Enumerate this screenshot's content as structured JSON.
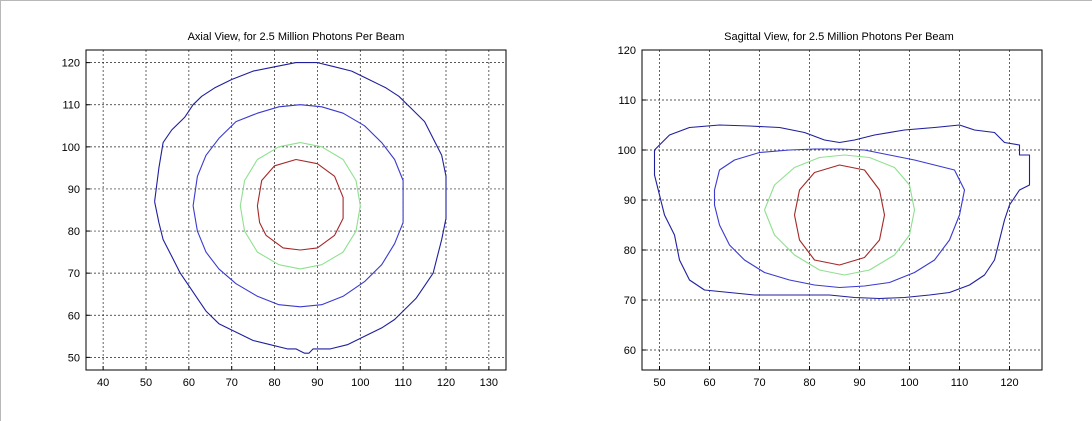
{
  "colors": {
    "outer_blue": "#1f1f9e",
    "mid_blue": "#3a3ad0",
    "green": "#8fe08f",
    "red": "#a52828",
    "grid": "#222222",
    "axis": "#000000"
  },
  "chart_data": [
    {
      "type": "contour",
      "title": "Axial View, for 2.5 Million Photons Per Beam",
      "xlabel": "",
      "ylabel": "",
      "xlim": [
        36,
        134
      ],
      "ylim": [
        47,
        123
      ],
      "xticks": [
        40,
        50,
        60,
        70,
        80,
        90,
        100,
        110,
        120,
        130
      ],
      "yticks": [
        50,
        60,
        70,
        80,
        90,
        100,
        110,
        120
      ],
      "grid": true,
      "series": [
        {
          "color": "#1f1f9e",
          "points": [
            [
              52,
              87
            ],
            [
              53,
              95
            ],
            [
              54,
              101
            ],
            [
              56,
              104
            ],
            [
              59,
              107
            ],
            [
              61,
              110
            ],
            [
              63,
              112
            ],
            [
              66,
              114
            ],
            [
              70,
              116
            ],
            [
              75,
              118
            ],
            [
              80,
              119
            ],
            [
              85,
              120
            ],
            [
              90,
              120
            ],
            [
              94,
              119
            ],
            [
              98,
              118
            ],
            [
              102,
              116
            ],
            [
              106,
              114
            ],
            [
              109,
              112
            ],
            [
              112,
              109
            ],
            [
              115,
              106
            ],
            [
              117,
              102
            ],
            [
              119,
              98
            ],
            [
              120,
              93
            ],
            [
              120,
              88
            ],
            [
              120,
              83
            ],
            [
              119,
              78
            ],
            [
              118,
              74
            ],
            [
              117,
              70
            ],
            [
              115,
              67
            ],
            [
              113,
              64
            ],
            [
              110,
              61
            ],
            [
              108,
              59
            ],
            [
              105,
              57
            ],
            [
              101,
              55
            ],
            [
              97,
              53
            ],
            [
              93,
              52
            ],
            [
              89,
              52
            ],
            [
              88,
              51
            ],
            [
              87,
              51
            ],
            [
              86,
              51.5
            ],
            [
              85,
              52
            ],
            [
              83,
              52
            ],
            [
              79,
              53
            ],
            [
              75,
              54
            ],
            [
              71,
              56
            ],
            [
              67,
              58
            ],
            [
              64,
              61
            ],
            [
              62,
              64
            ],
            [
              60,
              67
            ],
            [
              58,
              70
            ],
            [
              56,
              74
            ],
            [
              54,
              78
            ],
            [
              53,
              82
            ],
            [
              52,
              87
            ]
          ]
        },
        {
          "color": "#3a3ad0",
          "points": [
            [
              61,
              86
            ],
            [
              62,
              93
            ],
            [
              64,
              98
            ],
            [
              67,
              102
            ],
            [
              71,
              106
            ],
            [
              76,
              108
            ],
            [
              81,
              109.5
            ],
            [
              86,
              110
            ],
            [
              91,
              109.5
            ],
            [
              96,
              108
            ],
            [
              101,
              105
            ],
            [
              105,
              101
            ],
            [
              108,
              97
            ],
            [
              110,
              92
            ],
            [
              110,
              87
            ],
            [
              110,
              82
            ],
            [
              108,
              77
            ],
            [
              105,
              72
            ],
            [
              101,
              68
            ],
            [
              96,
              64.5
            ],
            [
              91,
              62.5
            ],
            [
              86,
              62
            ],
            [
              81,
              62.5
            ],
            [
              76,
              64.5
            ],
            [
              71,
              67.5
            ],
            [
              67,
              71
            ],
            [
              64,
              75
            ],
            [
              62,
              80
            ],
            [
              61,
              86
            ]
          ]
        },
        {
          "color": "#8fe08f",
          "points": [
            [
              72,
              86
            ],
            [
              73,
              92
            ],
            [
              76,
              97
            ],
            [
              81,
              100
            ],
            [
              86,
              101
            ],
            [
              91,
              100
            ],
            [
              96,
              97
            ],
            [
              99,
              92
            ],
            [
              100,
              86
            ],
            [
              99,
              80
            ],
            [
              96,
              75
            ],
            [
              91,
              72
            ],
            [
              86,
              71
            ],
            [
              81,
              72
            ],
            [
              76,
              75
            ],
            [
              73,
              80
            ],
            [
              72,
              86
            ]
          ]
        },
        {
          "color": "#a52828",
          "points": [
            [
              76,
              86
            ],
            [
              77,
              92
            ],
            [
              80,
              95.5
            ],
            [
              85,
              97
            ],
            [
              90,
              96
            ],
            [
              94,
              93
            ],
            [
              96,
              88
            ],
            [
              96,
              83
            ],
            [
              94,
              79
            ],
            [
              90,
              76
            ],
            [
              86,
              75.5
            ],
            [
              82,
              76
            ],
            [
              78,
              79
            ],
            [
              76.5,
              82
            ],
            [
              76,
              86
            ]
          ]
        }
      ]
    },
    {
      "type": "contour",
      "title": "Sagittal View, for 2.5 Million Photons Per Beam",
      "xlabel": "",
      "ylabel": "",
      "xlim": [
        46.5,
        126.5
      ],
      "ylim": [
        56,
        120
      ],
      "xticks": [
        50,
        60,
        70,
        80,
        90,
        100,
        110,
        120
      ],
      "yticks": [
        60,
        70,
        80,
        90,
        100,
        110,
        120
      ],
      "grid": true,
      "series": [
        {
          "color": "#1f1f9e",
          "points": [
            [
              49,
              100
            ],
            [
              52,
              103
            ],
            [
              56,
              104.5
            ],
            [
              62,
              105
            ],
            [
              68,
              104.8
            ],
            [
              74,
              104.5
            ],
            [
              79,
              103.5
            ],
            [
              83,
              102
            ],
            [
              86,
              101.5
            ],
            [
              89,
              102
            ],
            [
              93,
              103
            ],
            [
              99,
              104
            ],
            [
              105,
              104.5
            ],
            [
              110,
              105
            ],
            [
              113,
              104
            ],
            [
              117,
              103.5
            ],
            [
              119,
              101.5
            ],
            [
              122,
              101
            ],
            [
              122,
              99
            ],
            [
              124,
              99
            ],
            [
              124,
              93
            ],
            [
              122,
              92
            ],
            [
              120,
              89
            ],
            [
              119,
              86
            ],
            [
              118,
              82
            ],
            [
              117,
              78
            ],
            [
              115,
              75
            ],
            [
              112,
              73
            ],
            [
              108,
              71.5
            ],
            [
              104,
              71
            ],
            [
              99,
              70.5
            ],
            [
              94,
              70.3
            ],
            [
              89,
              70.5
            ],
            [
              84,
              71
            ],
            [
              79,
              71
            ],
            [
              74,
              71
            ],
            [
              69,
              71
            ],
            [
              64,
              71.5
            ],
            [
              59,
              72
            ],
            [
              56,
              74
            ],
            [
              54,
              78
            ],
            [
              53,
              83
            ],
            [
              51,
              87
            ],
            [
              50,
              91
            ],
            [
              49,
              95
            ],
            [
              49,
              100
            ]
          ]
        },
        {
          "color": "#3a3ad0",
          "points": [
            [
              61,
              92
            ],
            [
              62,
              96
            ],
            [
              65,
              98
            ],
            [
              70,
              99.5
            ],
            [
              76,
              100
            ],
            [
              81,
              100.2
            ],
            [
              86,
              100.2
            ],
            [
              91,
              100
            ],
            [
              96,
              99
            ],
            [
              101,
              98
            ],
            [
              105,
              97
            ],
            [
              109,
              96
            ],
            [
              111,
              92
            ],
            [
              110,
              87
            ],
            [
              108,
              82
            ],
            [
              105,
              78
            ],
            [
              101,
              75.5
            ],
            [
              96,
              73.5
            ],
            [
              91,
              72.8
            ],
            [
              86,
              72.5
            ],
            [
              81,
              73
            ],
            [
              76,
              74
            ],
            [
              71,
              75.5
            ],
            [
              67,
              78
            ],
            [
              64,
              81
            ],
            [
              62,
              85
            ],
            [
              61,
              89
            ],
            [
              61,
              92
            ]
          ]
        },
        {
          "color": "#8fe08f",
          "points": [
            [
              71,
              88
            ],
            [
              73,
              93
            ],
            [
              77,
              96.5
            ],
            [
              82,
              98.5
            ],
            [
              87,
              99
            ],
            [
              92,
              98.5
            ],
            [
              97,
              96.5
            ],
            [
              100,
              93
            ],
            [
              101,
              88
            ],
            [
              100,
              83
            ],
            [
              97,
              79
            ],
            [
              92,
              76
            ],
            [
              87,
              75
            ],
            [
              82,
              76
            ],
            [
              77,
              79
            ],
            [
              73,
              83
            ],
            [
              71,
              88
            ]
          ]
        },
        {
          "color": "#a52828",
          "points": [
            [
              77,
              87
            ],
            [
              78,
              92
            ],
            [
              81,
              95.5
            ],
            [
              86,
              97
            ],
            [
              91,
              96
            ],
            [
              94,
              92
            ],
            [
              95,
              87
            ],
            [
              94,
              82
            ],
            [
              91,
              78.5
            ],
            [
              86,
              77
            ],
            [
              81,
              78
            ],
            [
              78,
              82
            ],
            [
              77,
              87
            ]
          ]
        }
      ]
    }
  ]
}
